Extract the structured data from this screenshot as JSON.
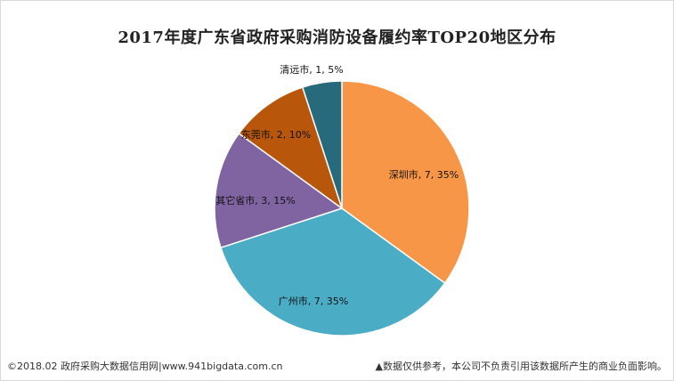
{
  "chart_data": {
    "type": "pie",
    "title": "2017年度广东省政府采购消防设备履约率TOP20地区分布",
    "slices": [
      {
        "name": "深圳市",
        "value": 7,
        "percent": "35%",
        "label": "深圳市, 7, 35%",
        "color": "#f79646"
      },
      {
        "name": "广州市",
        "value": 7,
        "percent": "35%",
        "label": "广州市, 7, 35%",
        "color": "#4bacc6"
      },
      {
        "name": "其它省市",
        "value": 3,
        "percent": "15%",
        "label": "其它省市, 3, 15%",
        "color": "#8064a2"
      },
      {
        "name": "东莞市",
        "value": 2,
        "percent": "10%",
        "label": "东莞市, 2, 10%",
        "color": "#b8560b"
      },
      {
        "name": "清远市",
        "value": 1,
        "percent": "5%",
        "label": "清远市, 1, 5%",
        "color": "#276a7c"
      }
    ]
  },
  "footer": {
    "left": "©2018.02 政府采购大数据信用网|www.941bigdata.com.cn",
    "right": "▲数据仅供参考，本公司不负责引用该数据所产生的商业负面影响。"
  }
}
